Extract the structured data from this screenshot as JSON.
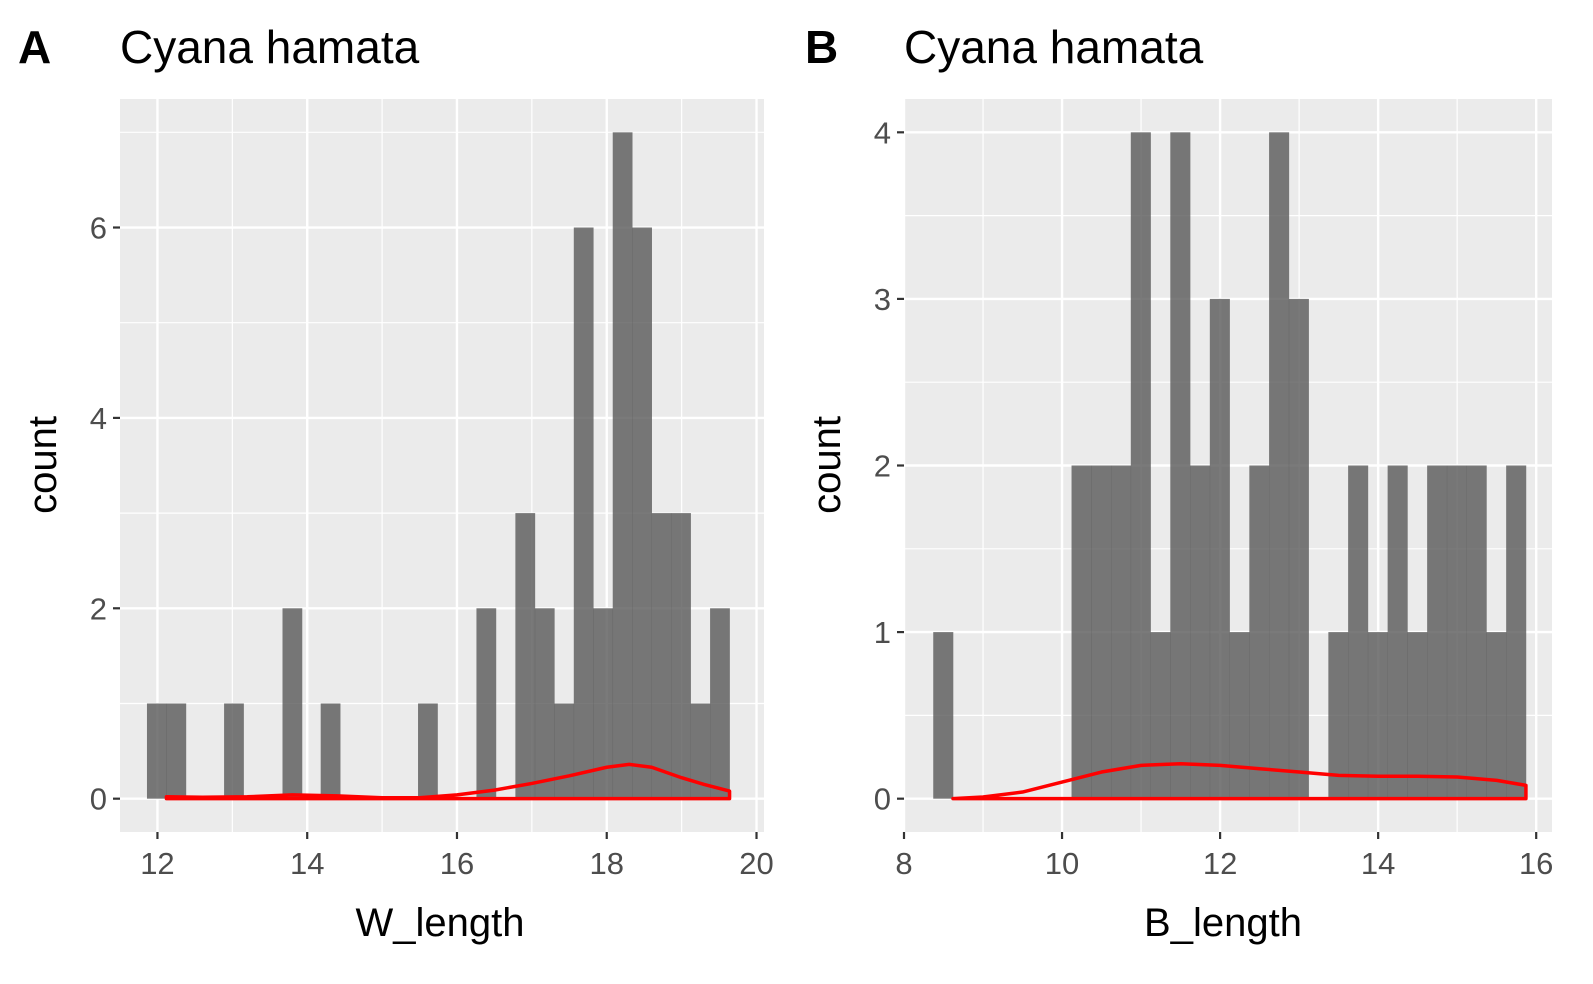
{
  "chart_data": [
    {
      "type": "histogram",
      "panel_label": "A",
      "title": "Cyana hamata",
      "xlabel": "W_length",
      "ylabel": "count",
      "xlim": [
        11.5,
        20.1
      ],
      "ylim": [
        -0.35,
        7.35
      ],
      "x_ticks": [
        12,
        14,
        16,
        18,
        20
      ],
      "y_ticks": [
        0,
        2,
        4,
        6
      ],
      "x_minor": [
        13,
        15,
        17,
        19
      ],
      "y_minor": [
        1,
        3,
        5,
        7
      ],
      "grid": true,
      "bar_color": "#595959",
      "density_color": "#ff0000",
      "bins": [
        {
          "x0": 11.86,
          "x1": 12.12,
          "count": 1
        },
        {
          "x0": 12.12,
          "x1": 12.38,
          "count": 1
        },
        {
          "x0": 12.89,
          "x1": 13.15,
          "count": 1
        },
        {
          "x0": 13.67,
          "x1": 13.93,
          "count": 2
        },
        {
          "x0": 14.18,
          "x1": 14.44,
          "count": 1
        },
        {
          "x0": 15.48,
          "x1": 15.74,
          "count": 1
        },
        {
          "x0": 16.26,
          "x1": 16.52,
          "count": 2
        },
        {
          "x0": 16.78,
          "x1": 17.04,
          "count": 3
        },
        {
          "x0": 17.04,
          "x1": 17.3,
          "count": 2
        },
        {
          "x0": 17.3,
          "x1": 17.56,
          "count": 1
        },
        {
          "x0": 17.56,
          "x1": 17.82,
          "count": 6
        },
        {
          "x0": 17.82,
          "x1": 18.08,
          "count": 2
        },
        {
          "x0": 18.08,
          "x1": 18.34,
          "count": 7
        },
        {
          "x0": 18.34,
          "x1": 18.6,
          "count": 6
        },
        {
          "x0": 18.6,
          "x1": 18.86,
          "count": 3
        },
        {
          "x0": 18.86,
          "x1": 19.12,
          "count": 3
        },
        {
          "x0": 19.12,
          "x1": 19.38,
          "count": 1
        },
        {
          "x0": 19.38,
          "x1": 19.64,
          "count": 2
        }
      ],
      "density": {
        "x": [
          12.12,
          12.6,
          13.2,
          13.8,
          14.4,
          15.0,
          15.5,
          16.0,
          16.5,
          17.0,
          17.5,
          18.0,
          18.3,
          18.6,
          19.0,
          19.3,
          19.64
        ],
        "y": [
          0.02,
          0.015,
          0.02,
          0.04,
          0.03,
          0.01,
          0.01,
          0.04,
          0.09,
          0.16,
          0.24,
          0.33,
          0.36,
          0.33,
          0.22,
          0.15,
          0.08
        ]
      }
    },
    {
      "type": "histogram",
      "panel_label": "B",
      "title": "Cyana hamata",
      "xlabel": "B_length",
      "ylabel": "count",
      "xlim": [
        8.0,
        16.2
      ],
      "ylim": [
        -0.2,
        4.2
      ],
      "x_ticks": [
        8,
        10,
        12,
        14,
        16
      ],
      "y_ticks": [
        0,
        1,
        2,
        3,
        4
      ],
      "x_minor": [
        9,
        11,
        13,
        15
      ],
      "y_minor": [
        0.5,
        1.5,
        2.5,
        3.5
      ],
      "grid": true,
      "bar_color": "#595959",
      "density_color": "#ff0000",
      "bins": [
        {
          "x0": 8.37,
          "x1": 8.62,
          "count": 1
        },
        {
          "x0": 10.12,
          "x1": 10.37,
          "count": 2
        },
        {
          "x0": 10.37,
          "x1": 10.62,
          "count": 2
        },
        {
          "x0": 10.62,
          "x1": 10.87,
          "count": 2
        },
        {
          "x0": 10.87,
          "x1": 11.12,
          "count": 4
        },
        {
          "x0": 11.12,
          "x1": 11.37,
          "count": 1
        },
        {
          "x0": 11.37,
          "x1": 11.62,
          "count": 4
        },
        {
          "x0": 11.62,
          "x1": 11.87,
          "count": 2
        },
        {
          "x0": 11.87,
          "x1": 12.12,
          "count": 3
        },
        {
          "x0": 12.12,
          "x1": 12.37,
          "count": 1
        },
        {
          "x0": 12.37,
          "x1": 12.62,
          "count": 2
        },
        {
          "x0": 12.62,
          "x1": 12.87,
          "count": 4
        },
        {
          "x0": 12.87,
          "x1": 13.12,
          "count": 3
        },
        {
          "x0": 13.37,
          "x1": 13.62,
          "count": 1
        },
        {
          "x0": 13.62,
          "x1": 13.87,
          "count": 2
        },
        {
          "x0": 13.87,
          "x1": 14.12,
          "count": 1
        },
        {
          "x0": 14.12,
          "x1": 14.37,
          "count": 2
        },
        {
          "x0": 14.37,
          "x1": 14.62,
          "count": 1
        },
        {
          "x0": 14.62,
          "x1": 14.87,
          "count": 2
        },
        {
          "x0": 14.87,
          "x1": 15.12,
          "count": 2
        },
        {
          "x0": 15.12,
          "x1": 15.37,
          "count": 2
        },
        {
          "x0": 15.37,
          "x1": 15.62,
          "count": 1
        },
        {
          "x0": 15.62,
          "x1": 15.87,
          "count": 2
        }
      ],
      "density": {
        "x": [
          8.62,
          9.0,
          9.5,
          10.0,
          10.5,
          11.0,
          11.5,
          12.0,
          12.5,
          13.0,
          13.5,
          14.0,
          14.5,
          15.0,
          15.5,
          15.87
        ],
        "y": [
          0.0,
          0.01,
          0.04,
          0.1,
          0.16,
          0.2,
          0.21,
          0.2,
          0.18,
          0.16,
          0.14,
          0.135,
          0.135,
          0.13,
          0.11,
          0.08
        ]
      }
    }
  ]
}
